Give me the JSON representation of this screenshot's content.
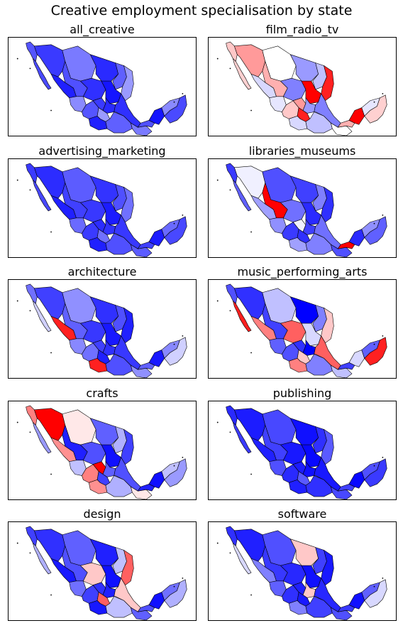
{
  "suptitle": "Creative employment specialisation by state",
  "colors": {
    "deep_blue": "#0000ff",
    "mid_blue": "#4040ff",
    "light_blue": "#8080ff",
    "pale_blue": "#d0d0ff",
    "white": "#ffffff",
    "pale_red": "#ffc8c8",
    "red": "#ff0000"
  },
  "panels": [
    {
      "title": "all_creative",
      "palette": [
        "#5555ff",
        "#4a4aff",
        "#3a3aff",
        "#7a7aff",
        "#2a2aff",
        "#6060ff",
        "#9a9aff",
        "#2020ff",
        "#5050ff",
        "#3030ff",
        "#1515ff",
        "#8a8aff"
      ]
    },
    {
      "title": "film_radio_tv",
      "palette": [
        "#ffc8c8",
        "#ffd0d0",
        "#ff9a9a",
        "#ffffff",
        "#9a9aff",
        "#c0c0ff",
        "#ff2020",
        "#d8d8ff",
        "#ffb0b0",
        "#8080ff",
        "#ff0000",
        "#e6e6ff"
      ]
    },
    {
      "title": "advertising_marketing",
      "palette": [
        "#3a3aff",
        "#4848ff",
        "#2c2cff",
        "#5c5cff",
        "#3333ff",
        "#5050ff",
        "#7070ff",
        "#2020ff",
        "#4040ff",
        "#3838ff",
        "#1c1cff",
        "#6a6aff"
      ]
    },
    {
      "title": "libraries_museums",
      "palette": [
        "#3a3aff",
        "#6060ff",
        "#f0f0ff",
        "#5050ff",
        "#4040ff",
        "#8080ff",
        "#3030ff",
        "#a0a0ff",
        "#ff0000",
        "#7070ff",
        "#2a2aff",
        "#9090ff"
      ]
    },
    {
      "title": "architecture",
      "palette": [
        "#7070ff",
        "#d0d0ff",
        "#4040ff",
        "#9090ff",
        "#3030ff",
        "#5050ff",
        "#2020ff",
        "#ff2020",
        "#6060ff",
        "#3838ff",
        "#1818ff",
        "#8888ff"
      ]
    },
    {
      "title": "music_performing_arts",
      "palette": [
        "#5050ff",
        "#ff2020",
        "#3030ff",
        "#c0c0ff",
        "#0000ff",
        "#8080ff",
        "#ffc8c8",
        "#ff8080",
        "#4040ff",
        "#ff6060",
        "#d8d8ff",
        "#6060ff"
      ]
    },
    {
      "title": "crafts",
      "palette": [
        "#ff8080",
        "#9a9aff",
        "#ff0000",
        "#ffe8e8",
        "#6060ff",
        "#b0b0ff",
        "#4040ff",
        "#ff9090",
        "#2020ff",
        "#5050ff",
        "#1010ff",
        "#c0c0ff"
      ]
    },
    {
      "title": "publishing",
      "palette": [
        "#2a2aff",
        "#3a3aff",
        "#1c1cff",
        "#4848ff",
        "#1010ff",
        "#3030ff",
        "#5a5aff",
        "#2020ff",
        "#4040ff",
        "#1818ff",
        "#0808ff",
        "#5050ff"
      ]
    },
    {
      "title": "design",
      "palette": [
        "#4040ff",
        "#b0b0ff",
        "#3030ff",
        "#6060ff",
        "#2020ff",
        "#c0c0ff",
        "#ff6060",
        "#1818ff",
        "#5050ff",
        "#ffc8c8",
        "#1010ff",
        "#7070ff"
      ]
    },
    {
      "title": "software",
      "palette": [
        "#3030ff",
        "#d8d8ff",
        "#2020ff",
        "#5050ff",
        "#ffc8c8",
        "#4040ff",
        "#1818ff",
        "#8080ff",
        "#3838ff",
        "#2828ff",
        "#1010ff",
        "#6060ff"
      ]
    }
  ]
}
